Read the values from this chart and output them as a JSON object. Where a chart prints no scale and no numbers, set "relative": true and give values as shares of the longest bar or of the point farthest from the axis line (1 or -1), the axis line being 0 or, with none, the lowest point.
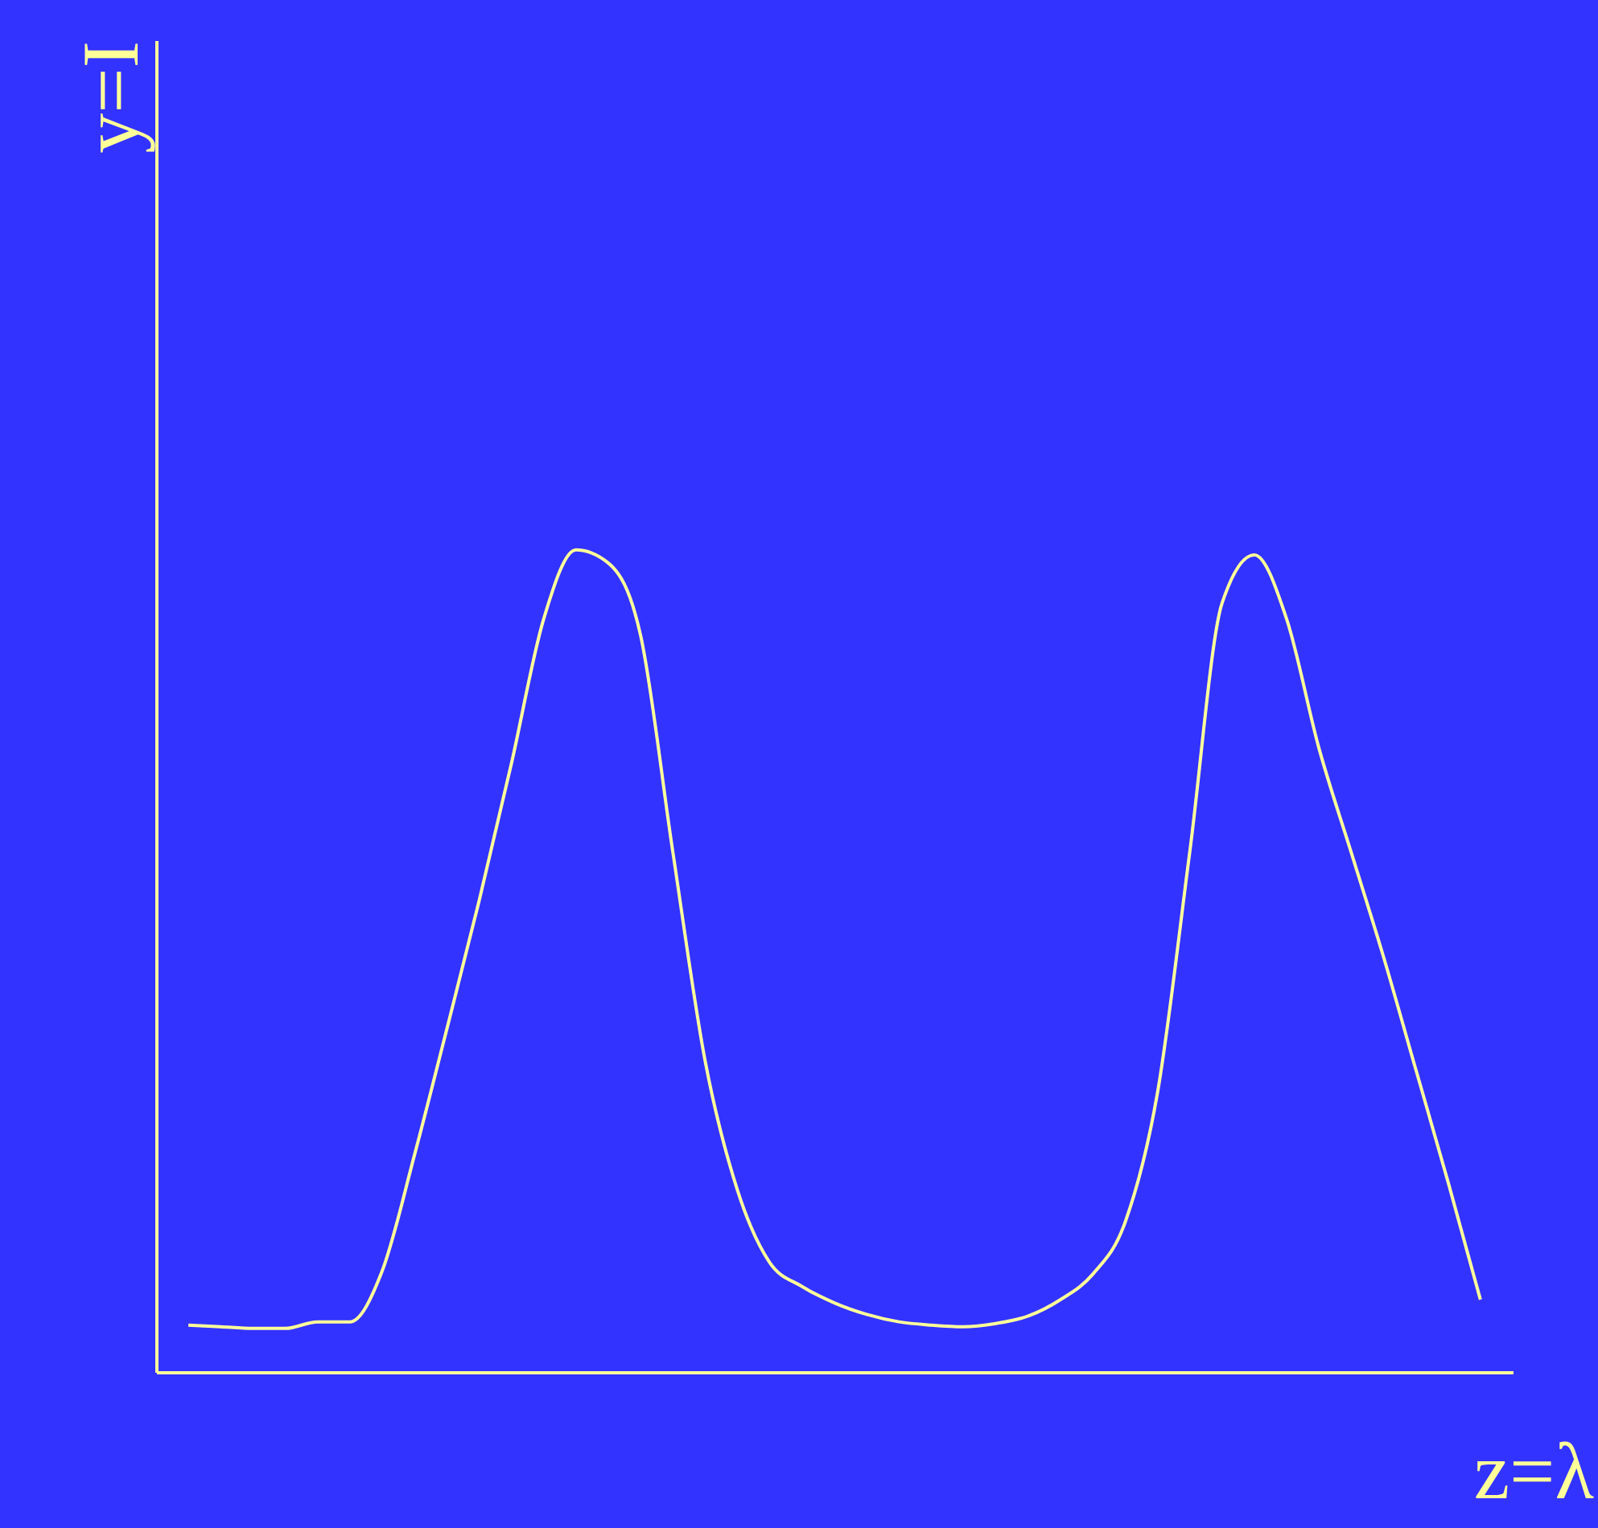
{
  "chart_data": {
    "type": "line",
    "relative": true,
    "xlabel": "z=λ",
    "ylabel": "y=I",
    "marker": "none",
    "grid": false,
    "legend": false,
    "categories": [
      null,
      null,
      null,
      null,
      null,
      null,
      null,
      null,
      null,
      null,
      null,
      null,
      null,
      null,
      null,
      null,
      null,
      null,
      null,
      null,
      null,
      null,
      null,
      null,
      null,
      null,
      null,
      null,
      null,
      null,
      null,
      null,
      null,
      null,
      null,
      null,
      null,
      null,
      null,
      null,
      null
    ],
    "series": [
      {
        "color": "#ffff99",
        "values": [
          0.057,
          0.055,
          0.053,
          0.053,
          0.061,
          0.061,
          0.123,
          0.264,
          0.417,
          0.573,
          0.74,
          0.916,
          1,
          0.984,
          0.896,
          0.632,
          0.378,
          0.221,
          0.133,
          0.104,
          0.084,
          0.07,
          0.061,
          0.057,
          0.055,
          0.059,
          0.068,
          0.088,
          0.119,
          0.182,
          0.339,
          0.632,
          0.935,
          0.994,
          0.916,
          0.759,
          0.632,
          0.505,
          0.368,
          0.231,
          0.088
        ]
      }
    ]
  }
}
